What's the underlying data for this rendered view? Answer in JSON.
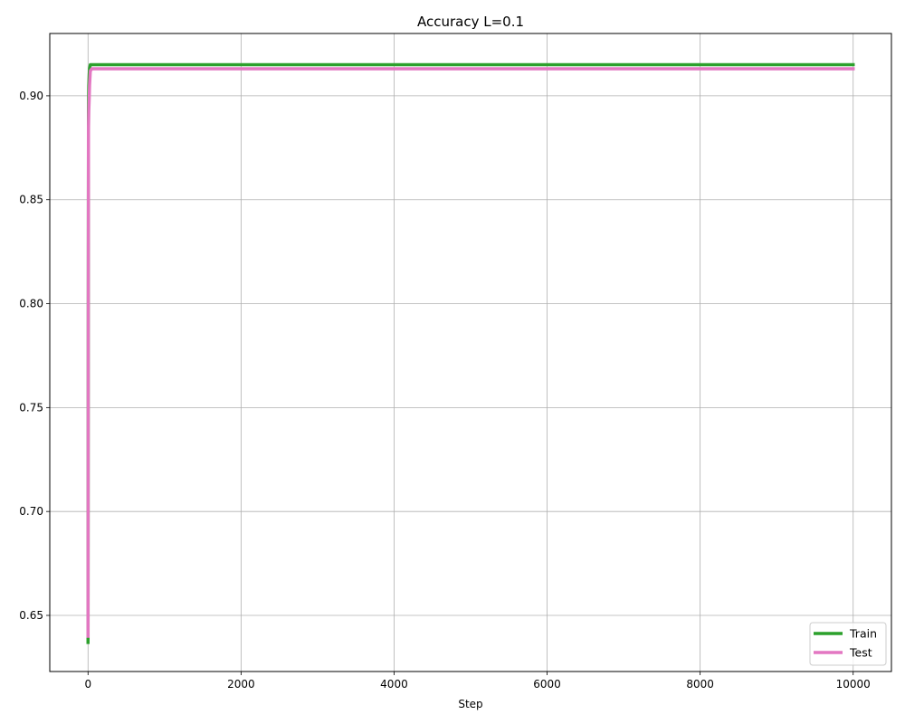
{
  "chart_data": {
    "type": "line",
    "title": "Accuracy L=0.1",
    "xlabel": "Step",
    "ylabel": "",
    "xlim": [
      -500,
      10500
    ],
    "ylim": [
      0.623,
      0.93
    ],
    "xticks": [
      0,
      2000,
      4000,
      6000,
      8000,
      10000
    ],
    "yticks": [
      0.65,
      0.7,
      0.75,
      0.8,
      0.85,
      0.9
    ],
    "ytick_labels": [
      "0.65",
      "0.70",
      "0.75",
      "0.80",
      "0.85",
      "0.90"
    ],
    "grid": true,
    "legend_position": "bottom-right",
    "series": [
      {
        "name": "Train",
        "color": "#2ca02c",
        "x": [
          0,
          3,
          6,
          10,
          15,
          20,
          30,
          50,
          100,
          500,
          1000,
          2000,
          5000,
          10000
        ],
        "y": [
          0.637,
          0.79,
          0.893,
          0.905,
          0.91,
          0.913,
          0.915,
          0.915,
          0.915,
          0.915,
          0.915,
          0.915,
          0.915,
          0.915
        ]
      },
      {
        "name": "Test",
        "color": "#e377c2",
        "x": [
          0,
          3,
          6,
          10,
          15,
          20,
          30,
          50,
          100,
          500,
          1000,
          2000,
          5000,
          10000
        ],
        "y": [
          0.64,
          0.79,
          0.885,
          0.893,
          0.898,
          0.905,
          0.912,
          0.913,
          0.913,
          0.913,
          0.913,
          0.913,
          0.913,
          0.913
        ]
      }
    ]
  }
}
